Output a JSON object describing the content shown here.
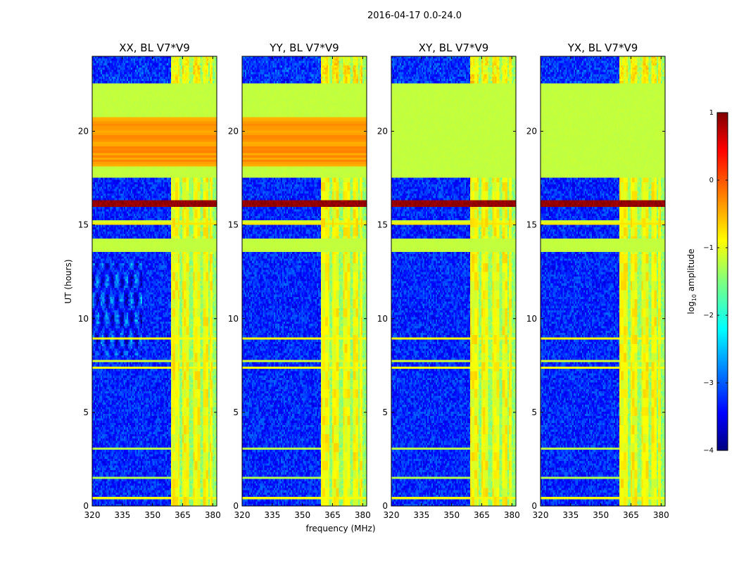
{
  "suptitle": "2016-04-17 0.0-24.0",
  "chart_data": {
    "type": "heatmap",
    "suptitle": "2016-04-17 0.0-24.0",
    "xlabel": "frequency (MHz)",
    "ylabel": "UT (hours)",
    "xlim": [
      320,
      382
    ],
    "ylim": [
      0,
      24
    ],
    "xticks": [
      320,
      335,
      350,
      365,
      380
    ],
    "yticks": [
      0,
      5,
      10,
      15,
      20
    ],
    "colorbar": {
      "label": "log10 amplitude",
      "label_main": "log",
      "label_sub": "10",
      "label_rest": " amplitude",
      "range": [
        -4,
        1
      ],
      "ticks": [
        1,
        0,
        -1,
        -2,
        -3,
        -4
      ],
      "tick_labels": [
        "1",
        "0",
        "−1",
        "−2",
        "−3",
        "−4"
      ],
      "colormap": "jet"
    },
    "panels": [
      {
        "title": "XX, BL V7*V9",
        "polarization": "XX"
      },
      {
        "title": "YY, BL V7*V9",
        "polarization": "YY"
      },
      {
        "title": "XY, BL V7*V9",
        "polarization": "XY"
      },
      {
        "title": "YX, BL V7*V9",
        "polarization": "YX"
      }
    ],
    "features": {
      "rfi_band_mhz": [
        359,
        382
      ],
      "rfi_channel_blocks_mhz": [
        [
          359,
          363.5
        ],
        [
          364.5,
          368.5
        ],
        [
          370,
          373.5
        ],
        [
          375,
          378
        ],
        [
          378.8,
          379.6
        ]
      ],
      "flagged_rows_hours": [
        [
          13.55,
          14.3
        ],
        [
          17.55,
          22.5
        ]
      ],
      "strong_event_hours": [
        15.9,
        16.3
      ],
      "background_log10": -3.2,
      "rfi_level_log10": -1.0,
      "flag_fill_log10": -1.2,
      "flag_fill_log10_xx_yy_sections": [
        [
          18.1,
          20.8,
          -0.25
        ]
      ]
    }
  }
}
